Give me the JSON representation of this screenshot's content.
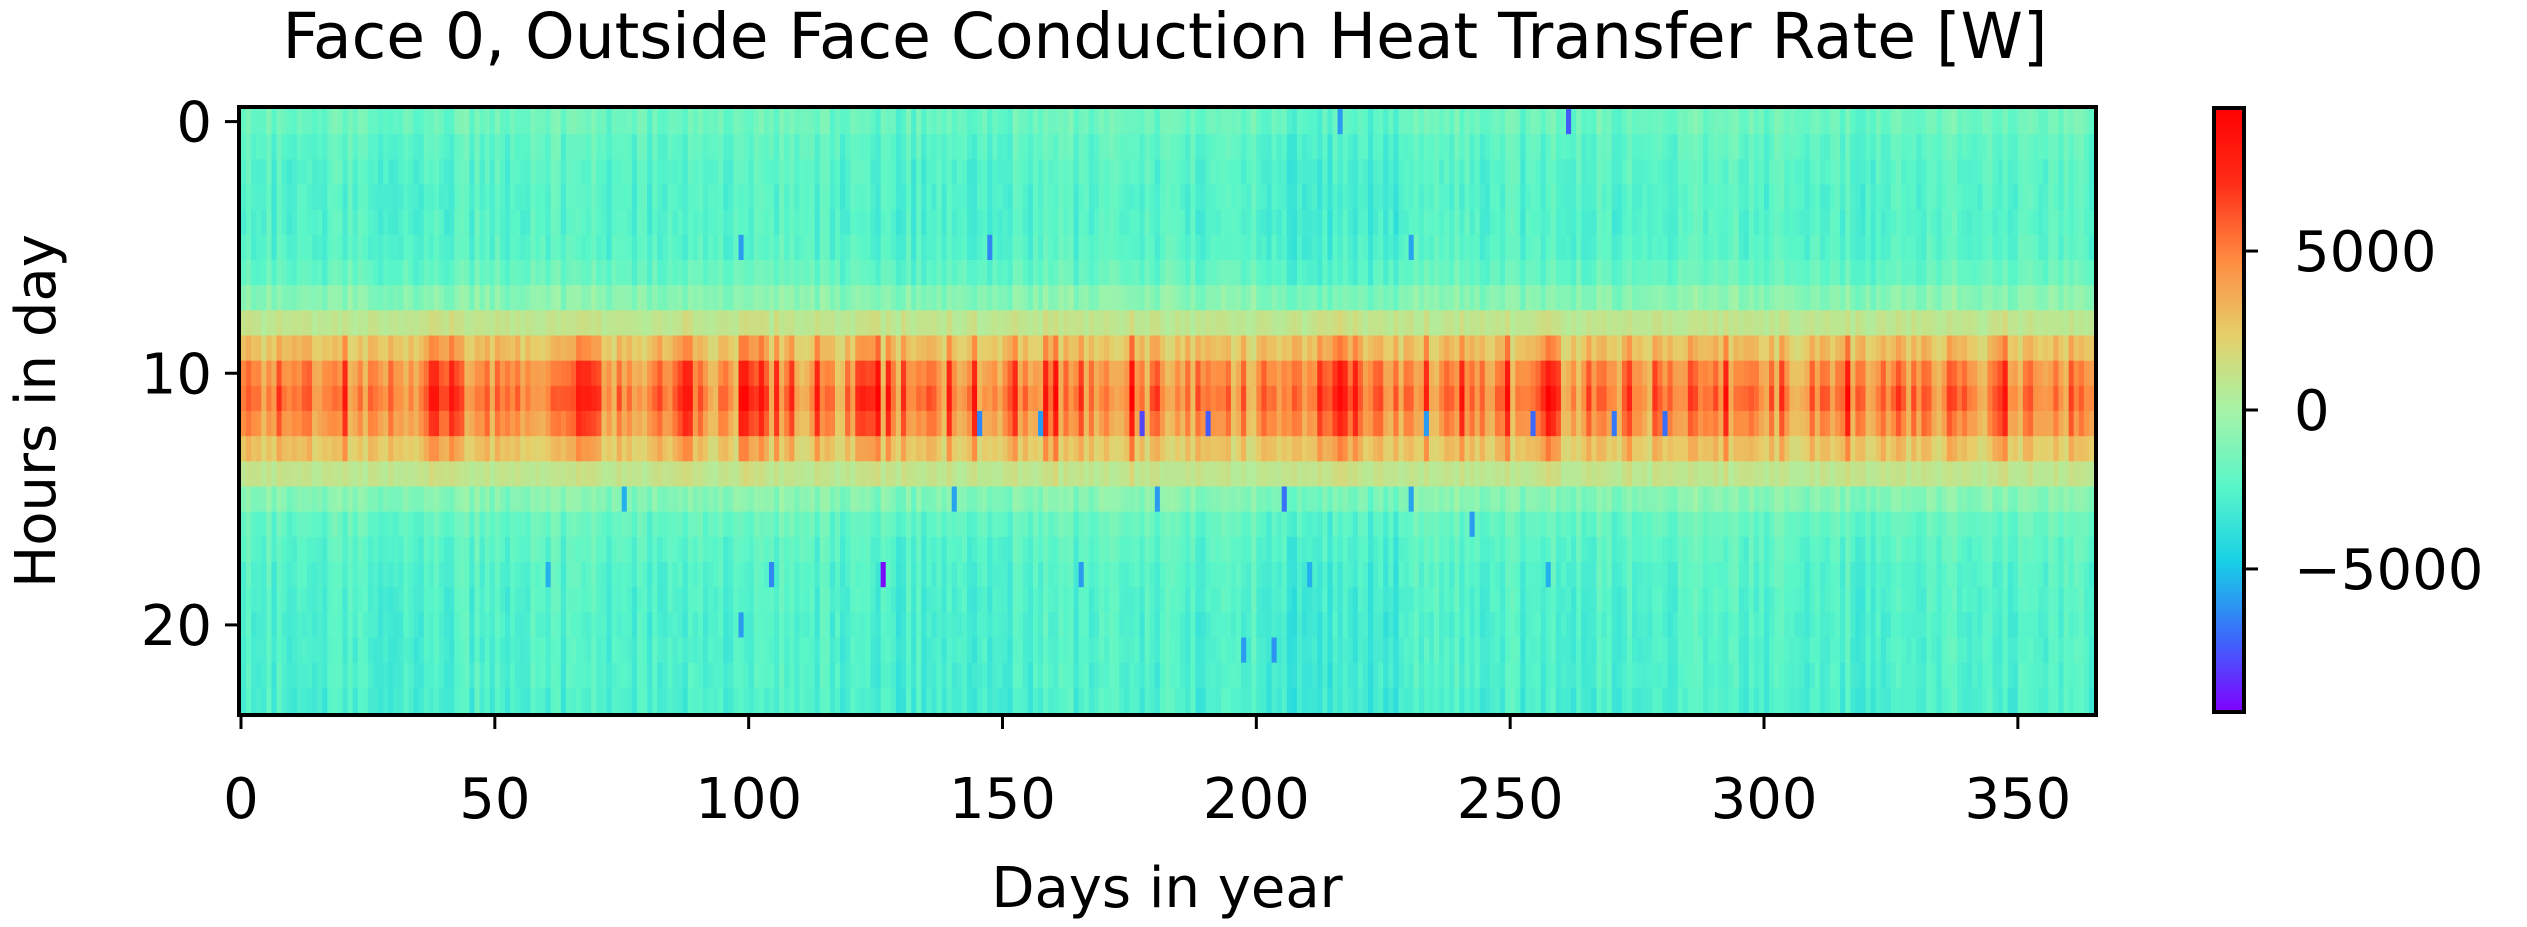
{
  "chart_data": {
    "type": "heatmap",
    "title": "Face 0, Outside Face Conduction Heat Transfer Rate [W]",
    "xlabel": "Days in year",
    "ylabel": "Hours in day",
    "x_range": [
      0,
      365
    ],
    "y_range": [
      0,
      24
    ],
    "y_inverted": true,
    "x_ticks": [
      "0",
      "50",
      "100",
      "150",
      "200",
      "250",
      "300",
      "350"
    ],
    "x_tick_values": [
      0,
      50,
      100,
      150,
      200,
      250,
      300,
      350
    ],
    "y_ticks": [
      "0",
      "10",
      "20"
    ],
    "y_tick_values": [
      0,
      10,
      20
    ],
    "colorbar": {
      "colormap": "rainbow",
      "range": [
        -9500,
        9500
      ],
      "ticks": [
        "5000",
        "0",
        "−5000"
      ],
      "tick_values": [
        5000,
        0,
        -5000
      ],
      "color_stops": [
        "#8000ff",
        "#3a6bfb",
        "#18d1e6",
        "#5af6c8",
        "#a6f3a6",
        "#e6cf6a",
        "#ff8a40",
        "#ff2d18",
        "#ff0000"
      ]
    },
    "hourly_profile_W": [
      -1800,
      -2200,
      -2400,
      -2500,
      -2500,
      -2400,
      -2000,
      -900,
      1000,
      3200,
      5000,
      5600,
      4800,
      3000,
      1000,
      -1000,
      -2000,
      -2300,
      -2500,
      -2600,
      -2700,
      -2700,
      -2700,
      -2800
    ],
    "summer_deeper_night_days": [
      200,
      230
    ],
    "peak_days": [
      7,
      20,
      37,
      38,
      39,
      40,
      41,
      42,
      43,
      48,
      66,
      67,
      68,
      69,
      70,
      82,
      86,
      87,
      88,
      90,
      98,
      99,
      100,
      101,
      102,
      103,
      105,
      108,
      113,
      121,
      122,
      123,
      124,
      125,
      127,
      130,
      139,
      144,
      152,
      158,
      160,
      165,
      175,
      180,
      188,
      197,
      212,
      213,
      214,
      215,
      216,
      217,
      219,
      233,
      240,
      249,
      256,
      257,
      258,
      259,
      265,
      273,
      278,
      285,
      292,
      303,
      316,
      326,
      336,
      345,
      346,
      347,
      360
    ],
    "negative_spikes": [
      {
        "day": 126,
        "hour": 18,
        "value": -9300
      },
      {
        "day": 177,
        "hour": 12,
        "value": -8000
      },
      {
        "day": 190,
        "hour": 12,
        "value": -7500
      },
      {
        "day": 254,
        "hour": 12,
        "value": -7200
      },
      {
        "day": 261,
        "hour": 0,
        "value": -7500
      },
      {
        "day": 145,
        "hour": 12,
        "value": -6500
      },
      {
        "day": 157,
        "hour": 12,
        "value": -6000
      },
      {
        "day": 205,
        "hour": 15,
        "value": -7000
      },
      {
        "day": 104,
        "hour": 18,
        "value": -6500
      },
      {
        "day": 270,
        "hour": 12,
        "value": -6800
      },
      {
        "day": 60,
        "hour": 18,
        "value": -5500
      },
      {
        "day": 98,
        "hour": 20,
        "value": -6000
      },
      {
        "day": 203,
        "hour": 21,
        "value": -6200
      },
      {
        "day": 197,
        "hour": 21,
        "value": -6000
      },
      {
        "day": 216,
        "hour": 0,
        "value": -6000
      },
      {
        "day": 147,
        "hour": 5,
        "value": -6500
      },
      {
        "day": 98,
        "hour": 5,
        "value": -6000
      },
      {
        "day": 230,
        "hour": 5,
        "value": -5800
      },
      {
        "day": 165,
        "hour": 18,
        "value": -6000
      },
      {
        "day": 210,
        "hour": 18,
        "value": -5500
      },
      {
        "day": 257,
        "hour": 18,
        "value": -5500
      },
      {
        "day": 280,
        "hour": 12,
        "value": -7000
      },
      {
        "day": 233,
        "hour": 12,
        "value": -6000
      },
      {
        "day": 75,
        "hour": 15,
        "value": -5500
      },
      {
        "day": 140,
        "hour": 15,
        "value": -5800
      },
      {
        "day": 180,
        "hour": 15,
        "value": -6000
      },
      {
        "day": 230,
        "hour": 15,
        "value": -5800
      },
      {
        "day": 242,
        "hour": 16,
        "value": -6000
      }
    ]
  }
}
